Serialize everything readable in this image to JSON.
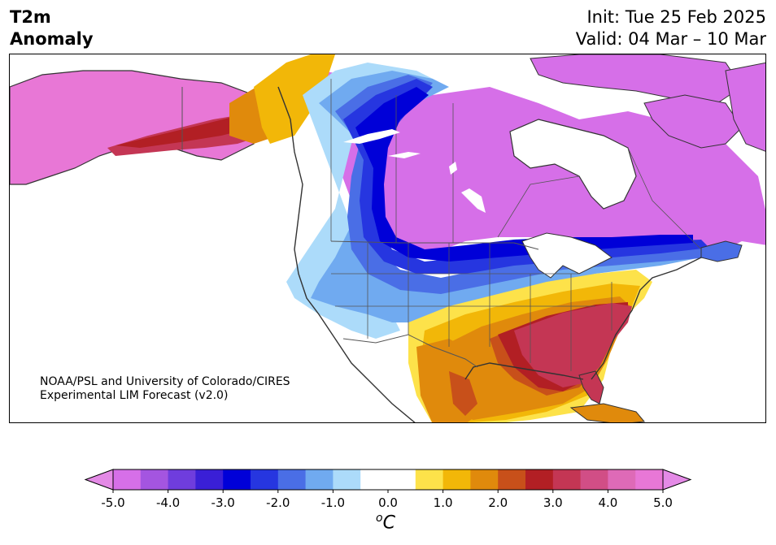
{
  "header": {
    "title_line1": "T2m",
    "title_line2": "Anomaly",
    "init_text": "Init: Tue 25 Feb 2025",
    "valid_text": "Valid: 04 Mar – 10 Mar"
  },
  "credit": {
    "line1": "NOAA/PSL and University of Colorado/CIRES",
    "line2": "Experimental LIM Forecast (v2.0)"
  },
  "colorbar": {
    "unit_prefix": "o",
    "unit_symbol": "C",
    "tick_labels": [
      "-5.0",
      "-4.0",
      "-3.0",
      "-2.0",
      "-1.0",
      "0.0",
      "1.0",
      "2.0",
      "3.0",
      "4.0",
      "5.0"
    ],
    "colors": [
      "#d66fe8",
      "#a455e0",
      "#6f3ddd",
      "#3a1fd6",
      "#0000d8",
      "#2636e0",
      "#4a6ee6",
      "#70aaf0",
      "#acdbfa",
      "#ffffff",
      "#ffffff",
      "#fde24a",
      "#f2b708",
      "#e08a0c",
      "#c8501a",
      "#b21f24",
      "#c43654",
      "#d14e86",
      "#de6ab7",
      "#e877d6"
    ],
    "under_color": "#e48ae6",
    "over_color": "#e48ae6"
  },
  "map": {
    "region": "North America",
    "ocean_color": "#ffffff",
    "coast_color": "#333333",
    "border_color": "#555555",
    "anomaly_colors": {
      "deep_warm": "#b21f24",
      "warm_pink": "#c43654",
      "orange": "#e08a0c",
      "yellow": "#fde24a",
      "gold": "#f2b708",
      "rust": "#c8501a",
      "cold_magenta": "#d66fe8",
      "violet": "#a455e0",
      "deep_blue": "#0000d8",
      "blue": "#2636e0",
      "mid_blue": "#4a6ee6",
      "light_blue": "#70aaf0",
      "pale_blue": "#acdbfa",
      "alaska_pink": "#e877d6"
    }
  }
}
